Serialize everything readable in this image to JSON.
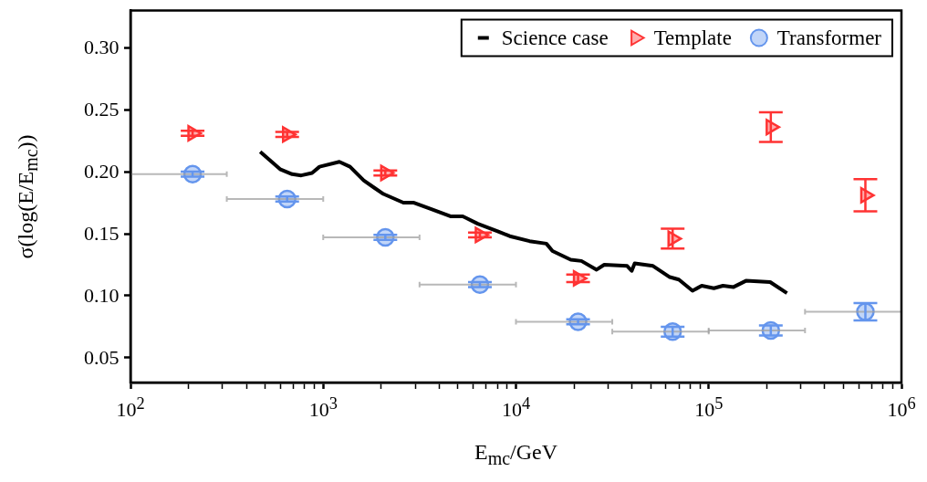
{
  "chart_data": {
    "type": "scatter",
    "xlabel": "E$_{mc}$/GeV",
    "ylabel": "σ(log(E/E$_{mc}$))",
    "log": "x",
    "xlim": [
      100,
      1000000
    ],
    "ylim": [
      0.03,
      0.33
    ],
    "xticks": [
      {
        "value": 100,
        "label": "10$^{2}$"
      },
      {
        "value": 200,
        "label": null
      },
      {
        "value": 300,
        "label": null
      },
      {
        "value": 400,
        "label": null
      },
      {
        "value": 500,
        "label": null
      },
      {
        "value": 600,
        "label": null
      },
      {
        "value": 700,
        "label": null
      },
      {
        "value": 800,
        "label": null
      },
      {
        "value": 900,
        "label": null
      },
      {
        "value": 1000,
        "label": "10$^{3}$"
      },
      {
        "value": 2000,
        "label": null
      },
      {
        "value": 3000,
        "label": null
      },
      {
        "value": 4000,
        "label": null
      },
      {
        "value": 5000,
        "label": null
      },
      {
        "value": 6000,
        "label": null
      },
      {
        "value": 7000,
        "label": null
      },
      {
        "value": 8000,
        "label": null
      },
      {
        "value": 9000,
        "label": null
      },
      {
        "value": 10000,
        "label": "10$^{4}$"
      },
      {
        "value": 20000,
        "label": null
      },
      {
        "value": 30000,
        "label": null
      },
      {
        "value": 40000,
        "label": null
      },
      {
        "value": 50000,
        "label": null
      },
      {
        "value": 60000,
        "label": null
      },
      {
        "value": 70000,
        "label": null
      },
      {
        "value": 80000,
        "label": null
      },
      {
        "value": 90000,
        "label": null
      },
      {
        "value": 100000,
        "label": "10$^{5}$"
      },
      {
        "value": 200000,
        "label": null
      },
      {
        "value": 300000,
        "label": null
      },
      {
        "value": 400000,
        "label": null
      },
      {
        "value": 500000,
        "label": null
      },
      {
        "value": 600000,
        "label": null
      },
      {
        "value": 700000,
        "label": null
      },
      {
        "value": 800000,
        "label": null
      },
      {
        "value": 900000,
        "label": null
      },
      {
        "value": 1000000,
        "label": "10$^{6}$"
      }
    ],
    "yticks": [
      {
        "value": 0.05,
        "label": "0.05"
      },
      {
        "value": 0.1,
        "label": "0.10"
      },
      {
        "value": 0.15,
        "label": "0.15"
      },
      {
        "value": 0.2,
        "label": "0.20"
      },
      {
        "value": 0.25,
        "label": "0.25"
      },
      {
        "value": 0.3,
        "label": "0.30"
      }
    ],
    "legend": "top right",
    "grid": false,
    "series": [
      {
        "name": "Science case",
        "type": "line",
        "color": "#000000",
        "marker": "none",
        "x": [
          471,
          597,
          690,
          769,
          875,
          957,
          1213,
          1377,
          1622,
          1842,
          2055,
          2605,
          2955,
          3614,
          4571,
          5296,
          6339,
          8035,
          9290,
          11770,
          14380,
          15480,
          19240,
          21860,
          26200,
          28710,
          37740,
          39850,
          41300,
          51400,
          62800,
          70000,
          82400,
          92000,
          106400,
          118600,
          134600,
          156000,
          208400,
          254700
        ],
        "values": [
          0.216,
          0.202,
          0.198,
          0.197,
          0.199,
          0.204,
          0.208,
          0.204,
          0.193,
          0.187,
          0.182,
          0.175,
          0.175,
          0.17,
          0.164,
          0.164,
          0.158,
          0.152,
          0.148,
          0.144,
          0.142,
          0.136,
          0.129,
          0.128,
          0.121,
          0.125,
          0.124,
          0.12,
          0.126,
          0.124,
          0.115,
          0.113,
          0.104,
          0.108,
          0.106,
          0.108,
          0.107,
          0.112,
          0.111,
          0.102
        ]
      },
      {
        "name": "Template",
        "color": "#ff3333",
        "marker": "triangle",
        "x": [
          210,
          650,
          2100,
          6500,
          21000,
          65000,
          210000,
          650000
        ],
        "values": [
          0.231,
          0.23,
          0.199,
          0.149,
          0.114,
          0.146,
          0.236,
          0.181
        ],
        "errors": [
          0.002,
          0.002,
          0.002,
          0.002,
          0.003,
          0.008,
          0.012,
          0.013
        ]
      },
      {
        "name": "Transformer",
        "color": "#6495ed",
        "marker": "circle",
        "x": [
          210,
          650,
          2100,
          6500,
          21000,
          65000,
          210000,
          650000
        ],
        "values": [
          0.198,
          0.178,
          0.147,
          0.109,
          0.079,
          0.071,
          0.072,
          0.087
        ],
        "errors": [
          0.002,
          0.002,
          0.002,
          0.002,
          0.002,
          0.004,
          0.004,
          0.007
        ],
        "xerrors": [
          [
            100,
            316
          ],
          [
            316,
            1000
          ],
          [
            1000,
            3160
          ],
          [
            3160,
            10000
          ],
          [
            10000,
            31600
          ],
          [
            31600,
            100000
          ],
          [
            100000,
            316000
          ],
          [
            316000,
            1000000
          ]
        ]
      }
    ]
  }
}
